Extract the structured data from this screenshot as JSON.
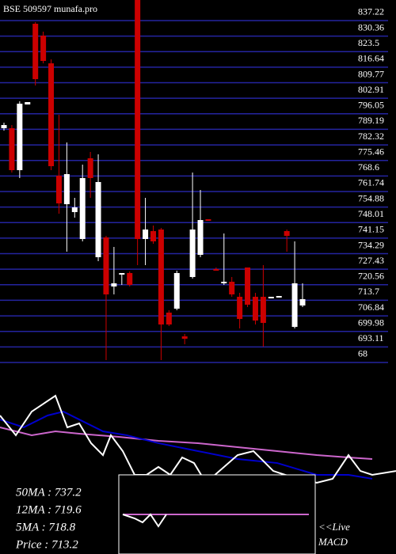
{
  "chart_data": [
    {
      "type": "candlestick",
      "title": "BSE 509597 munafa.pro",
      "categories": [
        null,
        null,
        null,
        null,
        null,
        null,
        null,
        null,
        null,
        null,
        null,
        null,
        null,
        null,
        null,
        null,
        null,
        null,
        null,
        null,
        null,
        null,
        null,
        null,
        null,
        null,
        null,
        null,
        null,
        null,
        null,
        null,
        null,
        null,
        null,
        null,
        null,
        null,
        null
      ],
      "open": [
        786.19,
        786.19,
        767.67,
        796.67,
        832.32,
        827.07,
        814.84,
        765.22,
        752.64,
        749.15,
        737.27,
        772.91,
        729.23,
        737.97,
        716.3,
        721.54,
        722.24,
        842.8,
        737.27,
        740.76,
        741.46,
        704.77,
        706.51,
        694.28,
        720.49,
        730.28,
        746.0,
        723.99,
        718.4,
        718.4,
        711.76,
        724.69,
        711.76,
        711.76,
        711.06,
        711.41,
        740.76,
        698.47,
        707.91
      ],
      "close": [
        787.59,
        767.67,
        797.02,
        797.72,
        807.86,
        815.89,
        769.42,
        752.99,
        765.92,
        751.24,
        764.17,
        764.17,
        762.43,
        712.81,
        717.7,
        722.24,
        717.0,
        737.27,
        741.46,
        736.22,
        699.52,
        699.52,
        722.24,
        693.23,
        741.46,
        745.65,
        745.3,
        723.29,
        718.4,
        712.81,
        701.97,
        708.26,
        701.27,
        700.22,
        711.76,
        712.11,
        738.66,
        717.7,
        710.71
      ],
      "high": [
        788.64,
        787.59,
        798.07,
        797.72,
        833.02,
        828.82,
        816.59,
        792.13,
        779.9,
        755.44,
        770.11,
        775.71,
        774.66,
        738.66,
        733.77,
        722.24,
        722.94,
        842.8,
        755.44,
        743.21,
        742.16,
        705.81,
        723.29,
        695.33,
        766.62,
        758.93,
        746.0,
        724.69,
        739.71,
        720.49,
        713.5,
        724.69,
        713.5,
        725.73,
        711.06,
        711.41,
        741.46,
        736.22,
        717.7
      ],
      "low": [
        785.14,
        766.62,
        764.17,
        796.67,
        805.06,
        814.84,
        767.67,
        748.45,
        731.67,
        746.7,
        736.22,
        755.44,
        727.48,
        683.8,
        712.81,
        717.0,
        716.3,
        725.73,
        725.73,
        735.17,
        683.8,
        698.82,
        705.81,
        690.79,
        719.79,
        729.23,
        745.3,
        723.29,
        717.0,
        711.76,
        697.78,
        707.21,
        699.52,
        689.74,
        711.06,
        711.41,
        731.67,
        697.78,
        707.21
      ],
      "up_color": "#ffffff",
      "down_color": "#cc0000",
      "ylim": [
        683.8,
        842.8
      ],
      "yticks": [
        837.22,
        830.36,
        823.5,
        816.64,
        809.77,
        802.91,
        796.05,
        789.19,
        782.32,
        775.46,
        768.6,
        761.74,
        754.88,
        748.01,
        741.15,
        734.29,
        727.43,
        720.56,
        713.7,
        706.84,
        699.98,
        693.11,
        {
          "value": 686.25,
          "label": "68"
        }
      ],
      "grid": true,
      "grid_color": "#2424a0"
    },
    {
      "type": "line",
      "annotations": [
        "50MA : 737.2",
        "12MA : 719.6",
        "5MA : 718.8",
        "Price   : 713.2"
      ],
      "xlim": [
        0,
        500
      ],
      "ylim": [
        0,
        100
      ],
      "series": [
        {
          "color": "#cc66cc",
          "x": [
            0,
            40,
            70,
            100,
            150,
            200,
            250,
            300,
            350,
            400,
            440,
            470
          ],
          "values": [
            46.2,
            38.5,
            42.3,
            40,
            36.9,
            33.1,
            30.8,
            26.9,
            23.1,
            19.2,
            16.9,
            15.4
          ]
        },
        {
          "color": "#0000cc",
          "x": [
            0,
            30,
            60,
            80,
            100,
            130,
            160,
            200,
            250,
            300,
            350,
            400,
            440,
            470
          ],
          "values": [
            53.8,
            46.2,
            57.7,
            61.5,
            53.8,
            42.3,
            38.5,
            30.8,
            23.1,
            15.4,
            11.5,
            0,
            0,
            -3.8
          ]
        },
        {
          "color": "#ffffff",
          "x": [
            0,
            20,
            40,
            55,
            70,
            85,
            100,
            115,
            130,
            140,
            155,
            170,
            185,
            200,
            215,
            230,
            245,
            260,
            300,
            320,
            330,
            345,
            360,
            400,
            420,
            440,
            455,
            470,
            500
          ],
          "values": [
            57.7,
            38.5,
            61.5,
            69.2,
            76.9,
            46.2,
            50,
            30.8,
            19.2,
            38.5,
            23.1,
            0,
            0,
            7.7,
            0,
            16.9,
            11.5,
            -7.7,
            19.2,
            23.1,
            15.4,
            3.8,
            0,
            -7.7,
            -3.8,
            19.2,
            3.8,
            0,
            3.8
          ]
        }
      ]
    },
    {
      "type": "line",
      "title": "MACD",
      "annotations": [
        "<<Live"
      ],
      "xlim": [
        150,
        400
      ],
      "ylim": [
        -10,
        10
      ],
      "series": [
        {
          "color": "#cc66cc",
          "x": [
            155,
            390
          ],
          "values": [
            0,
            0
          ]
        },
        {
          "color": "#ffffff",
          "x": [
            155,
            170,
            180,
            190,
            200,
            210
          ],
          "values": [
            0,
            -1,
            -2,
            0,
            -3,
            0
          ]
        }
      ]
    }
  ]
}
